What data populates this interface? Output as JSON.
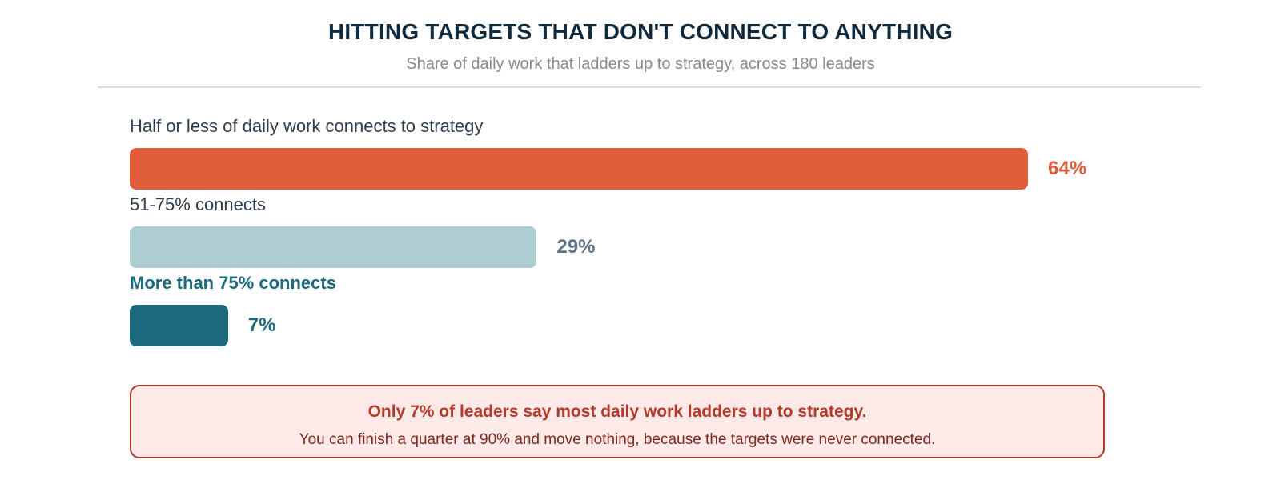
{
  "chart_data": {
    "type": "bar",
    "orientation": "horizontal",
    "title": "HITTING TARGETS THAT DON'T CONNECT TO ANYTHING",
    "subtitle": "Share of daily work that ladders up to strategy, across 180 leaders",
    "xlim": [
      0,
      64
    ],
    "categories": [
      "Half or less of daily work connects to strategy",
      "51-75% connects",
      "More than 75% connects"
    ],
    "values": [
      64,
      29,
      7
    ],
    "value_labels": [
      "64%",
      "29%",
      "7%"
    ],
    "bar_colors": [
      "#e05d3c",
      "#aecdd3",
      "#1c6a7d"
    ],
    "value_label_colors": [
      "#e05d3c",
      "#5f7287",
      "#1c6a7d"
    ],
    "highlighted_category": "More than 75% connects",
    "annotation": {
      "headline": "Only 7% of leaders say most daily work ladders up to strategy.",
      "body": "You can finish a quarter at 90% and move nothing, because the targets were never connected."
    }
  }
}
